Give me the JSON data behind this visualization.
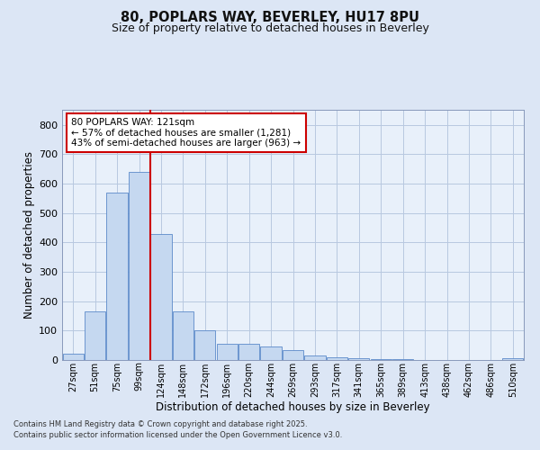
{
  "title1": "80, POPLARS WAY, BEVERLEY, HU17 8PU",
  "title2": "Size of property relative to detached houses in Beverley",
  "xlabel": "Distribution of detached houses by size in Beverley",
  "ylabel": "Number of detached properties",
  "bar_labels": [
    "27sqm",
    "51sqm",
    "75sqm",
    "99sqm",
    "124sqm",
    "148sqm",
    "172sqm",
    "196sqm",
    "220sqm",
    "244sqm",
    "269sqm",
    "293sqm",
    "317sqm",
    "341sqm",
    "365sqm",
    "389sqm",
    "413sqm",
    "438sqm",
    "462sqm",
    "486sqm",
    "510sqm"
  ],
  "bar_values": [
    20,
    165,
    570,
    640,
    430,
    165,
    100,
    55,
    55,
    45,
    35,
    15,
    10,
    5,
    3,
    2,
    1,
    0,
    0,
    0,
    5
  ],
  "bar_color": "#c5d8f0",
  "bar_edge_color": "#5b8ac9",
  "vline_color": "#cc0000",
  "annotation_text": "80 POPLARS WAY: 121sqm\n← 57% of detached houses are smaller (1,281)\n43% of semi-detached houses are larger (963) →",
  "annotation_box_color": "#cc0000",
  "annotation_box_fill": "#ffffff",
  "ylim": [
    0,
    850
  ],
  "yticks": [
    0,
    100,
    200,
    300,
    400,
    500,
    600,
    700,
    800
  ],
  "footer1": "Contains HM Land Registry data © Crown copyright and database right 2025.",
  "footer2": "Contains public sector information licensed under the Open Government Licence v3.0.",
  "bg_color": "#dce6f5",
  "plot_bg_color": "#e8f0fa",
  "grid_color": "#b8c8e0"
}
